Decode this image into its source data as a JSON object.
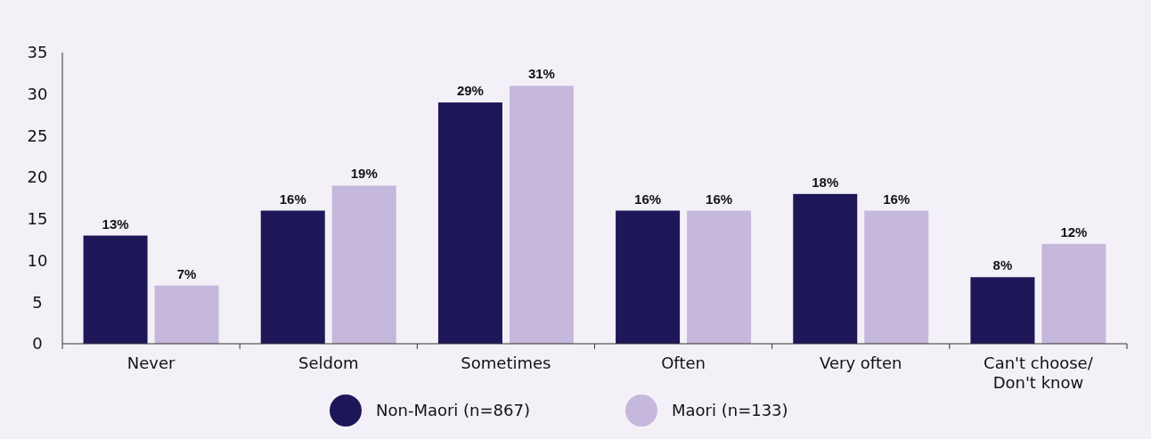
{
  "chart_data": {
    "type": "bar",
    "categories": [
      "Never",
      "Seldom",
      "Sometimes",
      "Often",
      "Very often",
      "Can't choose/\nDon't know"
    ],
    "series": [
      {
        "name": "Non-Maori (n=867)",
        "color": "#1e1757",
        "values": [
          13,
          16,
          29,
          16,
          18,
          8
        ],
        "value_labels": [
          "13%",
          "16%",
          "29%",
          "16%",
          "18%",
          "8%"
        ]
      },
      {
        "name": "Maori (n=133)",
        "color": "#c5b8dc",
        "values": [
          7,
          19,
          31,
          16,
          16,
          12
        ],
        "value_labels": [
          "7%",
          "19%",
          "31%",
          "16%",
          "16%",
          "12%"
        ]
      }
    ],
    "ylim": [
      0,
      35
    ],
    "yticks": [
      0,
      5,
      10,
      15,
      20,
      25,
      30,
      35
    ],
    "grid": false,
    "legend": "bottom"
  }
}
